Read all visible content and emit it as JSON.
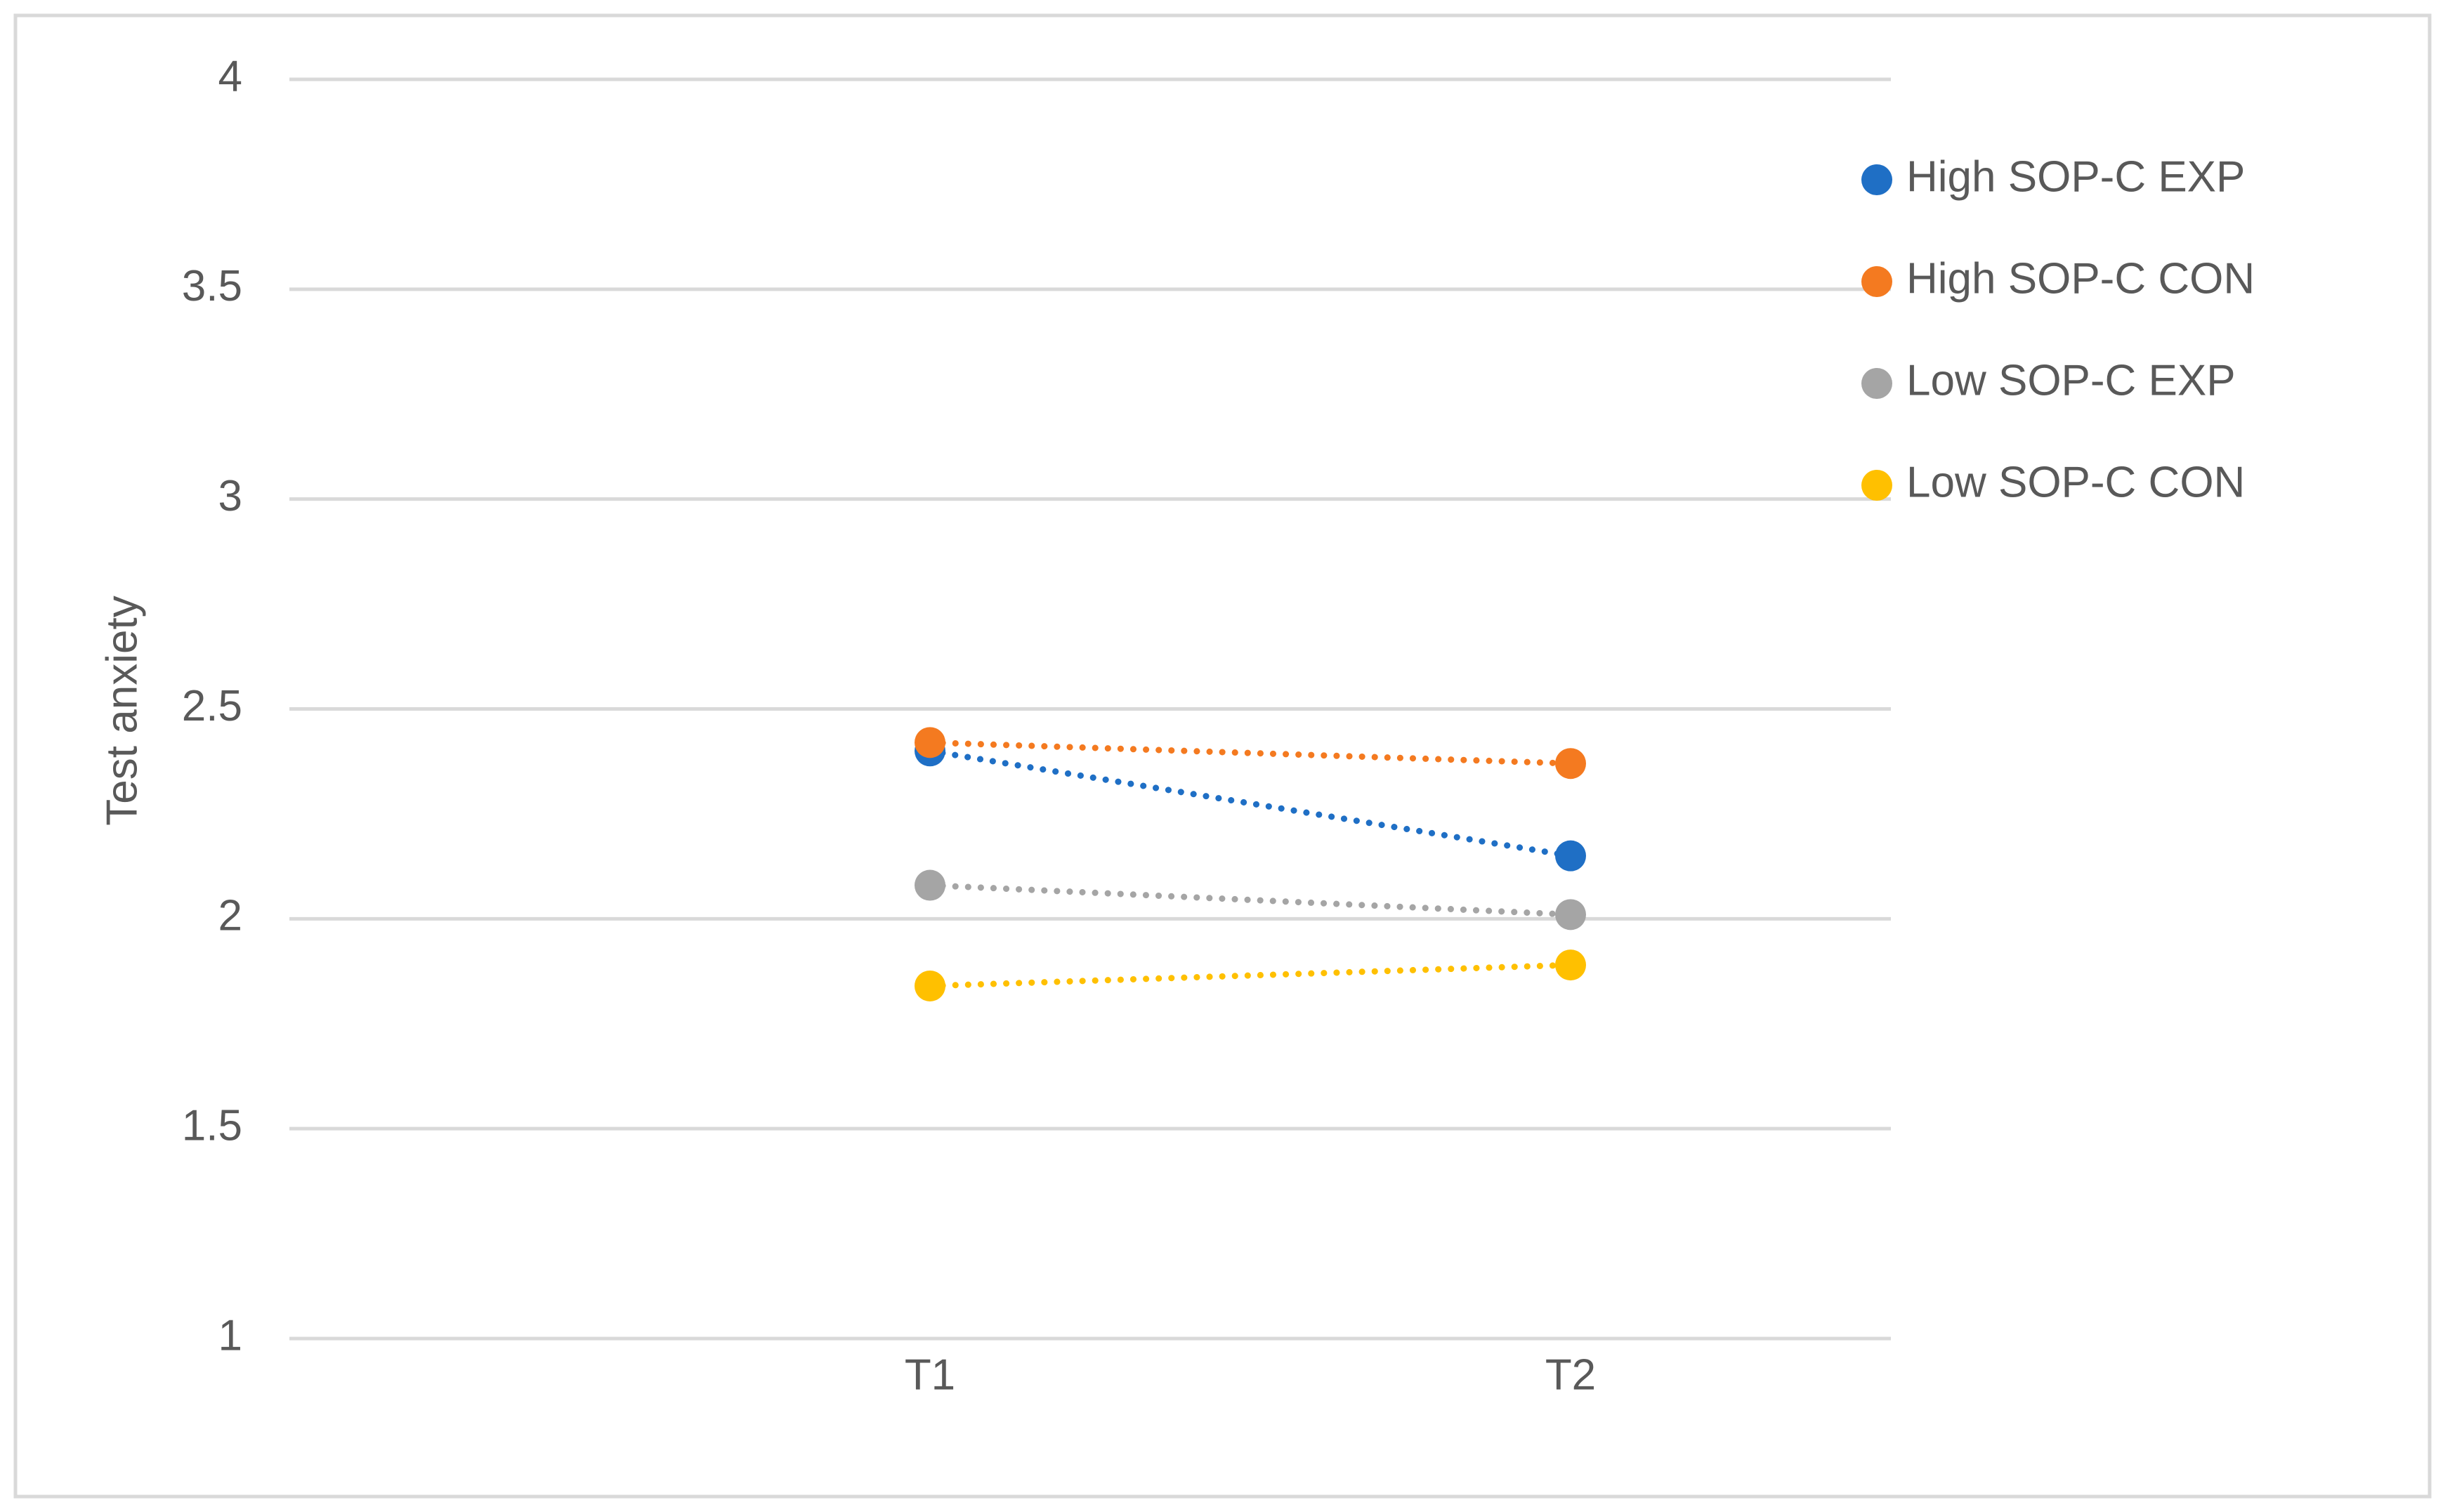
{
  "chart_data": {
    "type": "line",
    "y_label": "Test anxiety",
    "categories": [
      "T1",
      "T2"
    ],
    "series": [
      {
        "name": "High SOP-C EXP",
        "color": "#1f6fc5",
        "values": [
          2.4,
          2.15
        ]
      },
      {
        "name": "High SOP-C CON",
        "color": "#f47a20",
        "values": [
          2.42,
          2.37
        ]
      },
      {
        "name": "Low SOP-C EXP",
        "color": "#a5a5a5",
        "values": [
          2.08,
          2.01
        ]
      },
      {
        "name": "Low SOP-C CON",
        "color": "#ffc000",
        "values": [
          1.84,
          1.89
        ]
      }
    ],
    "ylim": [
      1,
      4
    ],
    "yticks": [
      1,
      1.5,
      2,
      2.5,
      3,
      3.5,
      4
    ],
    "grid": true,
    "legend": "right",
    "line_style": "dotted"
  }
}
